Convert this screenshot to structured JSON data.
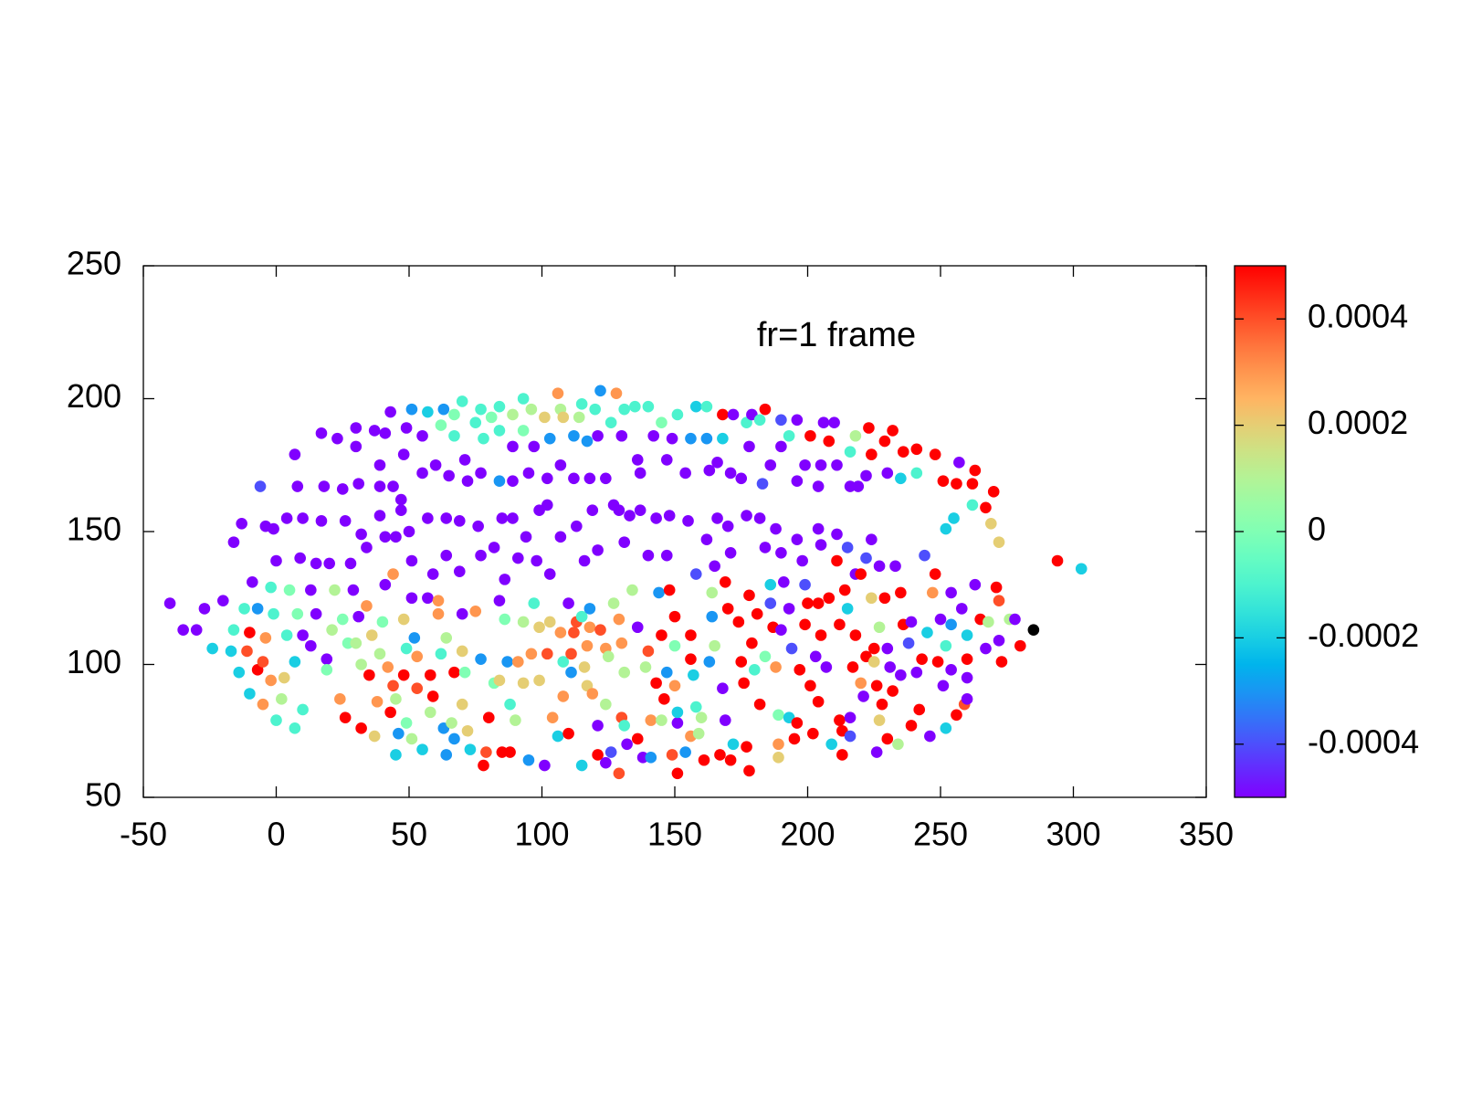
{
  "chart_data": {
    "type": "scatter",
    "annotation": "fr=1 frame",
    "xlim": [
      -50,
      350
    ],
    "xticks": [
      -50,
      0,
      50,
      100,
      150,
      200,
      250,
      300,
      350
    ],
    "ylim": [
      50,
      250
    ],
    "yticks": [
      50,
      100,
      150,
      200,
      250
    ],
    "colormap": "rainbow",
    "clim": [
      -0.0005,
      0.0005
    ],
    "cticks": [
      -0.0004,
      -0.0002,
      0,
      0.0002,
      0.0004
    ],
    "x": [
      -6,
      8,
      7,
      18,
      17,
      23,
      25,
      30,
      30,
      37,
      41,
      43,
      39,
      31,
      39,
      44,
      47,
      48,
      51,
      49,
      57,
      55,
      55,
      60,
      63,
      62,
      67,
      67,
      65,
      70,
      71,
      72,
      75,
      77,
      78,
      77,
      81,
      84,
      84,
      84,
      89,
      89,
      89,
      93,
      93,
      96,
      95,
      97,
      101,
      102,
      103,
      106,
      107,
      108,
      107,
      112,
      112,
      114,
      115,
      117,
      118,
      120,
      121,
      122,
      124,
      126,
      128,
      130,
      131,
      135,
      136,
      137,
      140,
      142,
      147,
      145,
      149,
      151,
      154,
      156,
      158,
      162,
      162,
      163,
      166,
      168,
      168,
      172,
      171,
      175,
      177,
      178,
      179,
      182,
      183,
      184,
      186,
      190,
      190,
      193,
      196,
      196,
      201,
      199,
      204,
      205,
      206,
      208,
      210,
      211,
      216,
      218,
      219,
      216,
      222,
      223,
      224,
      230,
      229,
      232,
      235,
      236,
      241,
      241,
      248,
      251,
      257,
      256,
      263,
      262,
      270,
      267,
      262,
      269,
      272,
      255,
      252,
      294,
      303,
      -16,
      -13,
      -4,
      -1,
      0,
      4,
      9,
      10,
      15,
      17,
      20,
      26,
      28,
      32,
      34,
      39,
      41,
      45,
      47,
      50,
      51,
      57,
      59,
      64,
      64,
      69,
      69,
      76,
      77,
      82,
      85,
      86,
      89,
      91,
      94,
      98,
      99,
      102,
      103,
      107,
      113,
      116,
      119,
      121,
      127,
      129,
      131,
      133,
      137,
      140,
      143,
      147,
      148,
      155,
      158,
      162,
      166,
      165,
      170,
      171,
      177,
      182,
      184,
      188,
      190,
      196,
      198,
      204,
      205,
      211,
      215,
      218,
      224,
      222,
      227,
      233,
      244,
      -40,
      -35,
      -30,
      -27,
      -20,
      -24,
      -17,
      -16,
      -14,
      -12,
      -10,
      -9,
      -10,
      -11,
      -7,
      -7,
      -5,
      -5,
      -4,
      -2,
      -1,
      -2,
      0,
      2,
      3,
      4,
      5,
      7,
      7,
      10,
      10,
      8,
      13,
      13,
      15,
      19,
      19,
      21,
      22,
      25,
      24,
      26,
      27,
      29,
      30,
      31,
      32,
      32,
      35,
      34,
      36,
      38,
      37,
      39,
      40,
      41,
      42,
      43,
      44,
      44,
      45,
      45,
      46,
      48,
      48,
      49,
      49,
      51,
      51,
      52,
      53,
      53,
      55,
      57,
      58,
      58,
      59,
      61,
      61,
      62,
      63,
      64,
      64,
      66,
      67,
      67,
      70,
      70,
      70,
      71,
      72,
      73,
      75,
      77,
      78,
      79,
      80,
      82,
      84,
      84,
      85,
      86,
      87,
      88,
      88,
      90,
      91,
      93,
      93,
      95,
      96,
      97,
      99,
      99,
      101,
      102,
      103,
      104,
      106,
      107,
      108,
      108,
      110,
      110,
      111,
      111,
      112,
      113,
      115,
      115,
      116,
      117,
      117,
      118,
      119,
      118,
      121,
      121,
      122,
      124,
      124,
      124,
      125,
      126,
      127,
      129,
      129,
      130,
      130,
      131,
      131,
      132,
      134,
      136,
      136,
      138,
      139,
      140,
      141,
      141,
      143,
      144,
      145,
      145,
      146,
      147,
      148,
      149,
      150,
      150,
      150,
      151,
      151,
      151,
      154,
      156,
      156,
      156,
      157,
      158,
      159,
      160,
      161,
      163,
      164,
      164,
      165,
      167,
      168,
      169,
      169,
      170,
      171,
      172,
      174,
      175,
      176,
      177,
      178,
      178,
      179,
      180,
      181,
      182,
      184,
      186,
      186,
      187,
      188,
      189,
      189,
      189,
      190,
      191,
      193,
      193,
      194,
      195,
      196,
      197,
      199,
      199,
      200,
      201,
      202,
      203,
      204,
      204,
      205,
      207,
      208,
      209,
      211,
      212,
      212,
      213,
      213,
      214,
      215,
      216,
      216,
      217,
      218,
      220,
      220,
      221,
      222,
      224,
      225,
      225,
      226,
      226,
      227,
      227,
      228,
      229,
      230,
      230,
      231,
      232,
      234,
      235,
      235,
      236,
      238,
      239,
      239,
      241,
      242,
      243,
      245,
      246,
      247,
      248,
      249,
      250,
      251,
      252,
      252,
      254,
      254,
      256,
      254,
      258,
      259,
      260,
      260,
      260,
      260,
      263,
      265,
      267,
      268,
      271,
      272,
      272,
      273,
      276,
      278,
      280,
      285
    ],
    "values": [
      167,
      167,
      179,
      167,
      187,
      185,
      166,
      182,
      189,
      188,
      187,
      195,
      175,
      168,
      167,
      167,
      162,
      179,
      196,
      189,
      195,
      186,
      172,
      175,
      196,
      190,
      186,
      194,
      171,
      199,
      177,
      169,
      191,
      196,
      185,
      172,
      193,
      197,
      188,
      169,
      182,
      194,
      169,
      200,
      188,
      196,
      172,
      182,
      193,
      170,
      185,
      202,
      196,
      193,
      175,
      186,
      170,
      193,
      198,
      184,
      170,
      196,
      186,
      203,
      170,
      191,
      202,
      186,
      196,
      197,
      177,
      172,
      197,
      186,
      177,
      191,
      185,
      194,
      172,
      185,
      197,
      197,
      185,
      173,
      176,
      194,
      185,
      194,
      172,
      170,
      191,
      182,
      194,
      192,
      168,
      196,
      175,
      192,
      182,
      186,
      169,
      192,
      186,
      175,
      167,
      175,
      191,
      184,
      191,
      175,
      167,
      186,
      167,
      180,
      171,
      189,
      179,
      172,
      184,
      188,
      170,
      180,
      172,
      181,
      179,
      169,
      176,
      168,
      173,
      168,
      165,
      159,
      160,
      153,
      146,
      155,
      151,
      139,
      136,
      146,
      153,
      152,
      151,
      139,
      155,
      140,
      155,
      138,
      154,
      138,
      154,
      138,
      149,
      144,
      156,
      148,
      148,
      158,
      150,
      139,
      155,
      134,
      155,
      141,
      154,
      135,
      152,
      141,
      144,
      155,
      132,
      155,
      140,
      148,
      139,
      158,
      160,
      134,
      148,
      152,
      139,
      158,
      143,
      160,
      158,
      146,
      156,
      158,
      141,
      155,
      141,
      156,
      154,
      134,
      147,
      155,
      137,
      152,
      142,
      156,
      155,
      144,
      151,
      142,
      147,
      139,
      151,
      145,
      149,
      144,
      134,
      147,
      140,
      137,
      137,
      141,
      123,
      113,
      113,
      121,
      124,
      106,
      105,
      113,
      97,
      121,
      89,
      131,
      112,
      105,
      98,
      121,
      85,
      101,
      110,
      94,
      119,
      129,
      79,
      87,
      95,
      111,
      128,
      101,
      76,
      83,
      111,
      119,
      128,
      107,
      119,
      102,
      98,
      113,
      128,
      117,
      87,
      80,
      108,
      128,
      108,
      118,
      100,
      76,
      96,
      122,
      111,
      86,
      73,
      104,
      116,
      130,
      99,
      82,
      92,
      134,
      66,
      87,
      74,
      117,
      96,
      78,
      106,
      125,
      72,
      110,
      91,
      103,
      68,
      125,
      82,
      96,
      88,
      119,
      124,
      104,
      76,
      66,
      110,
      78,
      72,
      97,
      119,
      105,
      85,
      97,
      75,
      68,
      120,
      102,
      62,
      67,
      80,
      93,
      94,
      124,
      67,
      117,
      101,
      67,
      85,
      79,
      101,
      116,
      93,
      64,
      104,
      123,
      114,
      94,
      62,
      104,
      116,
      80,
      73,
      112,
      101,
      88,
      74,
      123,
      97,
      104,
      112,
      116,
      118,
      62,
      99,
      92,
      107,
      114,
      89,
      121,
      77,
      66,
      113,
      85,
      63,
      106,
      103,
      67,
      123,
      117,
      59,
      80,
      108,
      97,
      77,
      70,
      128,
      114,
      72,
      65,
      99,
      105,
      65,
      79,
      93,
      127,
      111,
      79,
      87,
      97,
      128,
      66,
      107,
      118,
      92,
      78,
      82,
      59,
      67,
      111,
      73,
      102,
      96,
      84,
      74,
      80,
      64,
      101,
      127,
      118,
      107,
      66,
      91,
      79,
      131,
      121,
      64,
      70,
      116,
      101,
      93,
      69,
      60,
      126,
      108,
      98,
      119,
      85,
      103,
      130,
      123,
      114,
      99,
      70,
      65,
      81,
      113,
      131,
      121,
      80,
      106,
      72,
      78,
      98,
      130,
      115,
      123,
      92,
      74,
      103,
      86,
      123,
      111,
      99,
      125,
      70,
      139,
      115,
      79,
      66,
      75,
      128,
      121,
      73,
      80,
      99,
      111,
      134,
      93,
      88,
      103,
      125,
      101,
      106,
      67,
      92,
      114,
      79,
      85,
      125,
      72,
      106,
      99,
      90,
      70,
      96,
      127,
      115,
      108,
      116,
      77,
      97,
      83,
      102,
      112,
      73,
      127,
      134,
      101,
      117,
      92,
      107,
      76,
      115,
      127,
      81,
      98,
      121,
      85,
      95,
      102,
      111,
      87,
      130,
      117,
      106,
      116,
      129,
      109,
      124,
      101,
      117,
      117,
      107,
      113
    ],
    "color_values": [
      -0.0004,
      -0.0005,
      -0.0005,
      -0.0005,
      -0.0005,
      -0.0005,
      -0.0005,
      -0.0005,
      -0.0005,
      -0.0005,
      -0.0005,
      -0.0005,
      -0.0005,
      -0.0005,
      -0.0005,
      -0.0005,
      -0.0005,
      -0.0005,
      -0.0003,
      -0.0005,
      -0.0002,
      -0.0005,
      -0.0005,
      -0.0005,
      -0.0003,
      0,
      -0.0001,
      0,
      -0.0005,
      -0.0001,
      -0.0005,
      -0.0005,
      -0.0001,
      -0.0001,
      -0.0001,
      -0.0005,
      0,
      -0.0001,
      -0.0001,
      -0.0003,
      -0.0005,
      0.0001,
      -0.0005,
      -0.0001,
      0,
      0.0001,
      -0.0005,
      -0.0005,
      0.0002,
      -0.0005,
      -0.0003,
      0.0003,
      0.0001,
      0.0002,
      -0.0005,
      -0.0003,
      -0.0005,
      0.0001,
      -0.0001,
      -0.0003,
      -0.0005,
      -0.0001,
      -0.0005,
      -0.0003,
      -0.0005,
      -0.0001,
      0.0003,
      -0.0005,
      -0.0001,
      -0.0001,
      -0.0005,
      -0.0005,
      -0.0001,
      -0.0005,
      -0.0005,
      0,
      -0.0005,
      -0.0001,
      -0.0005,
      -0.0003,
      -0.0002,
      -0.0001,
      -0.0003,
      -0.0005,
      -0.0005,
      0.0005,
      -0.0002,
      -0.0005,
      -0.0005,
      -0.0005,
      -0.0001,
      -0.0005,
      -0.0005,
      -0.0001,
      -0.0004,
      0.0005,
      -0.0005,
      -0.0004,
      -0.0005,
      -0.0001,
      -0.0005,
      -0.0005,
      0.0005,
      -0.0005,
      -0.0005,
      -0.0005,
      -0.0005,
      0.0005,
      -0.0005,
      -0.0005,
      -0.0005,
      0.0001,
      -0.0005,
      -0.0001,
      -0.0005,
      0.0005,
      0.0005,
      -0.0005,
      0.0005,
      0.0005,
      -0.0002,
      0.0005,
      -0.0001,
      0.0005,
      0.0005,
      0.0005,
      -0.0005,
      0.0005,
      0.0005,
      0.0005,
      0.0005,
      0.0005,
      -0.0001,
      0.0002,
      0.0002,
      -0.0002,
      -0.0002,
      0.0005,
      -0.0002,
      -0.0005,
      -0.0005,
      -0.0005,
      -0.0005,
      -0.0005,
      -0.0005,
      -0.0005,
      -0.0005,
      -0.0005,
      -0.0005,
      -0.0005,
      -0.0005,
      -0.0005,
      -0.0005,
      -0.0005,
      -0.0005,
      -0.0005,
      -0.0005,
      -0.0005,
      -0.0005,
      -0.0005,
      -0.0005,
      -0.0005,
      -0.0005,
      -0.0005,
      -0.0005,
      -0.0005,
      -0.0005,
      -0.0005,
      -0.0005,
      -0.0005,
      -0.0005,
      -0.0005,
      -0.0005,
      -0.0005,
      -0.0005,
      -0.0005,
      -0.0005,
      -0.0005,
      -0.0005,
      -0.0005,
      -0.0005,
      -0.0005,
      -0.0005,
      -0.0005,
      -0.0005,
      -0.0005,
      -0.0005,
      -0.0005,
      -0.0005,
      -0.0005,
      -0.0005,
      -0.0005,
      -0.0005,
      -0.0004,
      -0.0005,
      -0.0005,
      -0.0005,
      -0.0005,
      -0.0005,
      -0.0005,
      -0.0005,
      -0.0005,
      -0.0005,
      -0.0005,
      -0.0005,
      -0.0005,
      -0.0005,
      -0.0005,
      -0.0005,
      -0.0004,
      -0.0005,
      -0.0005,
      -0.0004,
      -0.0005,
      -0.0005,
      -0.0004,
      -0.0005,
      -0.0005,
      -0.0005,
      -0.0005,
      -0.0005,
      -0.0002,
      -0.0002,
      -0.0001,
      -0.0002,
      -0.0001,
      -0.0002,
      -0.0005,
      0.0005,
      0.0004,
      0.0005,
      -0.0003,
      0.0003,
      0.0004,
      0.0003,
      0.0003,
      -0.0001,
      -0.0001,
      -0.0001,
      0.0001,
      0.0002,
      -0.0001,
      0,
      -0.0002,
      -0.0001,
      -0.0001,
      -0.0005,
      0,
      -0.0005,
      -0.0005,
      -0.0005,
      -0.0005,
      0,
      0.0001,
      0.0001,
      0,
      0.0003,
      0.0005,
      0,
      -0.0005,
      0.0001,
      -0.0005,
      0.0001,
      0.0005,
      0.0005,
      0.0003,
      0.0002,
      0.0003,
      0.0002,
      0.0001,
      0,
      -0.0005,
      0.0003,
      0.0005,
      0.0004,
      0.0003,
      -0.0002,
      0.0001,
      -0.0003,
      0.0002,
      0.0005,
      0,
      -0.0001,
      -0.0005,
      0.0001,
      -0.0003,
      0.0004,
      0.0003,
      -0.0002,
      -0.0005,
      0.0001,
      0.0005,
      0.0005,
      0.0003,
      0.0003,
      -0.0001,
      -0.0003,
      -0.0003,
      0.0001,
      0.0001,
      -0.0003,
      0.0005,
      -0.0005,
      0.0002,
      0.0002,
      0,
      0.0002,
      -0.0002,
      0.0003,
      -0.0003,
      0.0005,
      0.0004,
      0.0005,
      0,
      0.0002,
      -0.0005,
      0.0005,
      0,
      -0.0003,
      0.0005,
      -0.0001,
      0.0001,
      0.0003,
      0.0001,
      0.0002,
      -0.0003,
      0.0003,
      -0.0001,
      0.0002,
      0.0002,
      -0.0005,
      0.0004,
      0.0002,
      0.0003,
      -0.0002,
      0.0003,
      -0.0001,
      0.0003,
      0.0005,
      -0.0005,
      -0.0003,
      0.0004,
      0.0004,
      0.0004,
      -0.0001,
      -0.0002,
      0.0002,
      0.0002,
      0.0003,
      0.0003,
      0.0003,
      -0.0003,
      -0.0005,
      0.0005,
      0.0004,
      0.0001,
      -0.0005,
      0.0003,
      0.0001,
      -0.0004,
      0.0001,
      0.0003,
      0.0004,
      0.0004,
      0.0003,
      0.0001,
      -0.0001,
      -0.0005,
      0.0001,
      -0.0005,
      0.0005,
      -0.0005,
      0.0001,
      0.0004,
      -0.0003,
      0.0003,
      0.0005,
      -0.0003,
      0.0005,
      0.0001,
      0.0005,
      -0.0003,
      0.0005,
      0.0004,
      0,
      0.0005,
      0.0003,
      -0.0005,
      -0.0002,
      0.0005,
      -0.0003,
      0.0005,
      0.0003,
      0.0005,
      -0.0002,
      -0.0001,
      0.0001,
      0.0001,
      0.0005,
      -0.0003,
      0.0001,
      -0.0003,
      0.0001,
      0.0005,
      -0.0005,
      -0.0005,
      0.0005,
      0.0005,
      0.0005,
      -0.0002,
      0.0005,
      0.0005,
      0.0005,
      0.0005,
      0.0005,
      0.0005,
      0.0005,
      -0.0001,
      0.0005,
      0.0005,
      0,
      -0.0002,
      -0.0004,
      0.0005,
      0.0003,
      0.0003,
      0.0002,
      0,
      -0.0005,
      -0.0005,
      -0.0005,
      -0.0002,
      -0.0004,
      0.0005,
      0.0005,
      0.0005,
      -0.0004,
      0.0005,
      0.0005,
      0.0005,
      0.0005,
      -0.0005,
      0.0005,
      0.0005,
      0.0005,
      -0.0005,
      0.0005,
      -0.0002,
      0.0005,
      0.0005,
      0.0005,
      0.0005,
      0.0005,
      0.0005,
      -0.0002,
      -0.0004,
      -0.0005,
      0.0005,
      0.0005,
      0.0005,
      0.0003,
      -0.0005,
      0.0005,
      0.0002,
      0.0002,
      0.0005,
      -0.0005,
      0.0005,
      0.0001,
      0.0002,
      0.0005,
      0.0005,
      0.0005,
      -0.0005,
      -0.0005,
      0.0005,
      0.0001,
      -0.0005,
      0.0005,
      0.0005,
      -0.0004,
      -0.0005,
      0.0005,
      -0.0005,
      0.0005,
      0.0005,
      -0.0002,
      -0.0005,
      0.0003,
      0.0005,
      0.0005,
      -0.0005,
      -0.0005,
      -0.0001,
      -0.0002,
      -0.0003,
      -0.0005,
      0.0005,
      -0.0005,
      -0.0005,
      0.0004,
      -0.0005,
      0.0005,
      -0.0002,
      -0.0005,
      -0.0005,
      0.0005,
      -0.0005,
      0.0001,
      0.0005,
      -0.0005,
      0.0004,
      0.0005,
      0.0001,
      -0.0005,
      0.0005
    ]
  }
}
